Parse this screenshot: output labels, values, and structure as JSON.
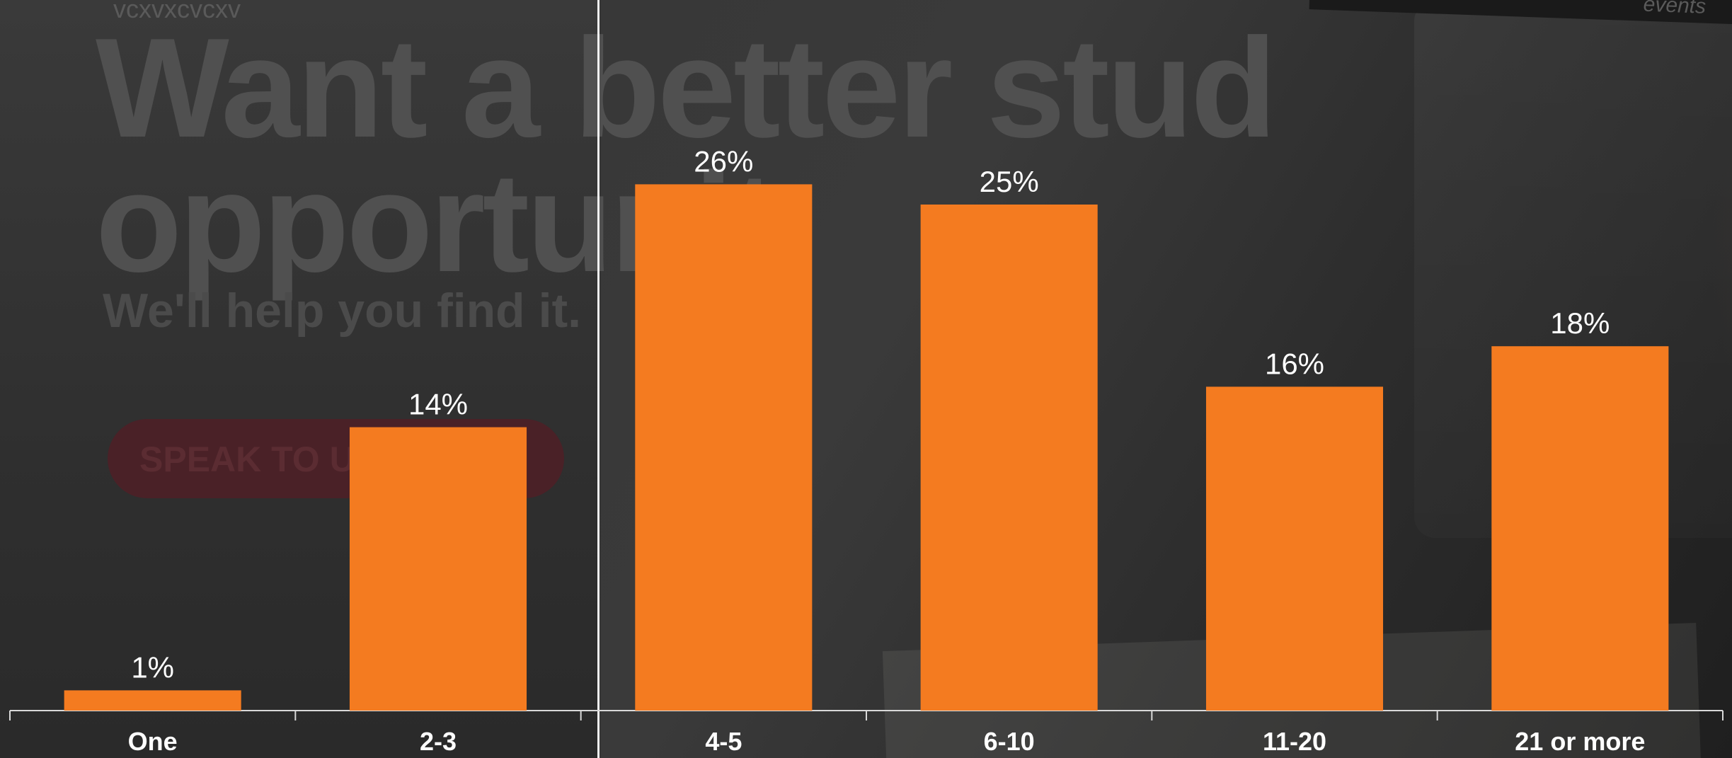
{
  "background": {
    "small_text": "vcxvxcvcxv",
    "headline_lines": [
      "Want a better stud",
      "opportunit"
    ],
    "subheadline": "We'll help you find it.",
    "button_label": "SPEAK TO US",
    "topbar_text": "events"
  },
  "colors": {
    "bar": "#F47B20",
    "label": "#FFFFFF",
    "axis": "#D9D9D9"
  },
  "chart_data": {
    "type": "bar",
    "categories": [
      "One",
      "2-3",
      "4-5",
      "6-10",
      "11-20",
      "21 or more"
    ],
    "values": [
      1,
      14,
      26,
      25,
      16,
      18
    ],
    "data_labels": [
      "1%",
      "14%",
      "26%",
      "25%",
      "16%",
      "18%"
    ],
    "ylim": [
      0,
      28
    ],
    "grid": false,
    "legend": "none"
  }
}
